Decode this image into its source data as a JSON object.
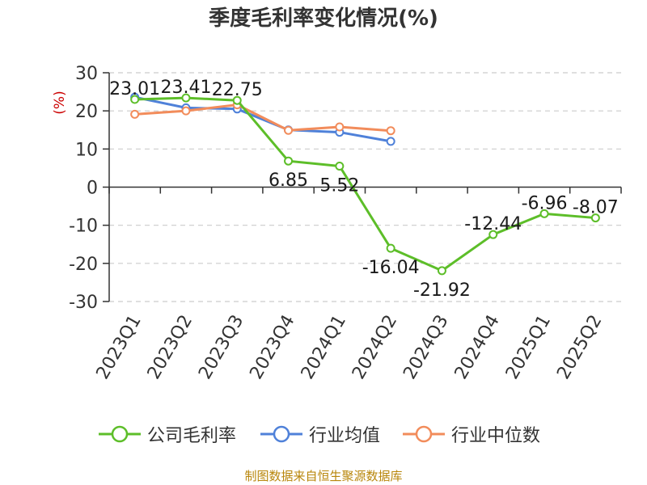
{
  "chart_data": {
    "type": "line",
    "title": "季度毛利率变化情况(%)",
    "ylabel": "(%)",
    "categories": [
      "2023Q1",
      "2023Q2",
      "2023Q3",
      "2023Q4",
      "2024Q1",
      "2024Q2",
      "2024Q3",
      "2024Q4",
      "2025Q1",
      "2025Q2"
    ],
    "ylim": [
      -30,
      30
    ],
    "yticks": [
      30,
      20,
      10,
      0,
      -10,
      -20,
      -30
    ],
    "grid": true,
    "legend_position": "bottom",
    "series": [
      {
        "name": "公司毛利率",
        "color": "#5dbe29",
        "values": [
          23.01,
          23.41,
          22.75,
          6.85,
          5.52,
          -16.04,
          -21.92,
          -12.44,
          -6.96,
          -8.07
        ],
        "labels": [
          "23.01",
          "23.41",
          "22.75",
          "6.85",
          "5.52",
          "-16.04",
          "-21.92",
          "-12.44",
          "-6.96",
          "-8.07"
        ]
      },
      {
        "name": "行业均值",
        "color": "#4f81d9",
        "values": [
          23.6,
          20.8,
          20.5,
          15.0,
          14.4,
          12.0,
          null,
          null,
          null,
          null
        ]
      },
      {
        "name": "行业中位数",
        "color": "#f28c5b",
        "values": [
          19.1,
          20.0,
          21.6,
          14.9,
          15.8,
          14.8,
          null,
          null,
          null,
          null
        ]
      }
    ]
  },
  "footer": {
    "source": "制图数据来自恒生聚源数据库"
  },
  "colors": {
    "axis": "#333333",
    "grid": "#cccccc",
    "ylabel": "#cc0000",
    "source": "#b8860b"
  }
}
